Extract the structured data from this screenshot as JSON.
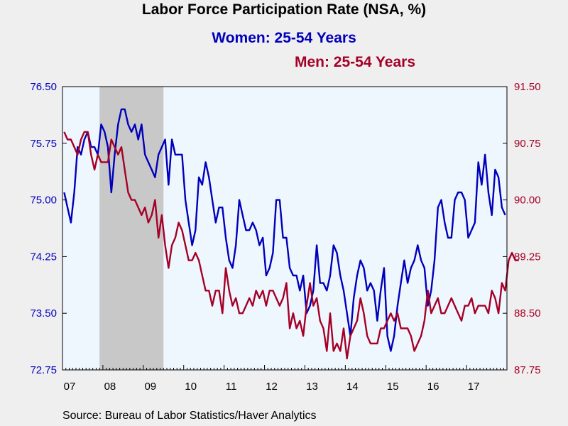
{
  "source": "Source:  Bureau of Labor Statistics/Haver Analytics",
  "colors": {
    "women": "#0000bb",
    "men": "#a50026",
    "plot_background": "#eef6fe",
    "recession": "#c8c8c8"
  },
  "chart_data": {
    "type": "line",
    "title": "Labor Force Participation Rate (NSA, %)",
    "x_start": "2007-01",
    "x_end": "2017-12",
    "x_tick_labels": [
      "07",
      "08",
      "09",
      "10",
      "11",
      "12",
      "13",
      "14",
      "15",
      "16",
      "17"
    ],
    "recession_shading": [
      "2007-12",
      "2009-06"
    ],
    "left_axis": {
      "ylim": [
        72.75,
        76.5
      ],
      "ticks": [
        "76.50",
        "75.75",
        "75.00",
        "74.25",
        "73.50",
        "72.75"
      ]
    },
    "right_axis": {
      "ylim": [
        87.75,
        91.5
      ],
      "ticks": [
        "91.50",
        "90.75",
        "90.00",
        "89.25",
        "88.50",
        "87.75"
      ]
    },
    "series": [
      {
        "name": "Women: 25-54 Years",
        "axis": "left",
        "values": [
          75.1,
          74.9,
          74.7,
          75.1,
          75.7,
          75.6,
          75.8,
          75.9,
          75.7,
          75.7,
          75.6,
          76.0,
          75.9,
          75.7,
          75.1,
          75.6,
          76.0,
          76.2,
          76.2,
          76.0,
          75.9,
          76.0,
          75.8,
          76.0,
          75.6,
          75.5,
          75.4,
          75.3,
          75.6,
          75.7,
          75.8,
          75.2,
          75.8,
          75.6,
          75.6,
          75.6,
          75.0,
          74.7,
          74.4,
          74.6,
          75.3,
          75.2,
          75.5,
          75.3,
          75.0,
          74.7,
          74.9,
          74.9,
          74.5,
          74.2,
          74.1,
          74.4,
          75.0,
          74.8,
          74.6,
          74.6,
          74.7,
          74.6,
          74.4,
          74.5,
          74.0,
          74.1,
          74.3,
          75.0,
          75.0,
          74.5,
          74.5,
          74.1,
          74.0,
          74.0,
          73.8,
          74.0,
          73.5,
          73.6,
          73.8,
          74.4,
          73.9,
          73.9,
          73.8,
          74.0,
          74.4,
          74.3,
          74.0,
          73.8,
          73.5,
          73.2,
          73.7,
          74.0,
          74.2,
          74.1,
          73.8,
          73.9,
          73.8,
          73.4,
          73.8,
          74.1,
          73.2,
          73.0,
          73.2,
          73.6,
          73.9,
          74.2,
          73.9,
          74.1,
          74.2,
          74.4,
          74.2,
          74.1,
          73.6,
          73.8,
          74.2,
          74.9,
          75.0,
          74.7,
          74.5,
          74.5,
          75.0,
          75.1,
          75.1,
          75.0,
          74.5,
          74.6,
          74.7,
          75.5,
          75.2,
          75.6,
          75.1,
          74.8,
          75.4,
          75.3,
          74.9,
          74.8
        ]
      },
      {
        "name": "Men: 25-54 Years",
        "axis": "right",
        "values": [
          90.9,
          90.8,
          90.8,
          90.7,
          90.6,
          90.8,
          90.9,
          90.9,
          90.6,
          90.4,
          90.6,
          90.5,
          90.5,
          90.5,
          90.8,
          90.7,
          90.6,
          90.7,
          90.4,
          90.1,
          90.0,
          90.0,
          89.9,
          89.8,
          89.9,
          89.7,
          89.8,
          90.0,
          89.5,
          89.8,
          89.4,
          89.1,
          89.4,
          89.5,
          89.7,
          89.6,
          89.4,
          89.2,
          89.2,
          89.3,
          89.2,
          89.0,
          88.8,
          88.8,
          88.6,
          88.8,
          88.8,
          88.5,
          89.1,
          88.8,
          88.6,
          88.7,
          88.5,
          88.5,
          88.6,
          88.7,
          88.6,
          88.8,
          88.7,
          88.8,
          88.6,
          88.8,
          88.8,
          88.7,
          88.6,
          88.7,
          88.9,
          88.3,
          88.5,
          88.3,
          88.4,
          88.2,
          88.6,
          88.9,
          88.6,
          88.7,
          88.4,
          88.3,
          88.0,
          88.5,
          88.0,
          88.1,
          88.0,
          88.3,
          87.9,
          88.2,
          88.3,
          88.4,
          88.7,
          88.5,
          88.2,
          88.1,
          88.1,
          88.1,
          88.3,
          88.3,
          88.4,
          88.5,
          88.4,
          88.5,
          88.3,
          88.3,
          88.3,
          88.2,
          88.0,
          88.1,
          88.2,
          88.4,
          88.8,
          88.5,
          88.6,
          88.7,
          88.5,
          88.5,
          88.6,
          88.7,
          88.6,
          88.5,
          88.4,
          88.6,
          88.6,
          88.7,
          88.5,
          88.6,
          88.6,
          88.6,
          88.5,
          88.8,
          88.7,
          88.5,
          88.9,
          88.8,
          89.2,
          89.3,
          89.2,
          89.2
        ]
      }
    ]
  }
}
